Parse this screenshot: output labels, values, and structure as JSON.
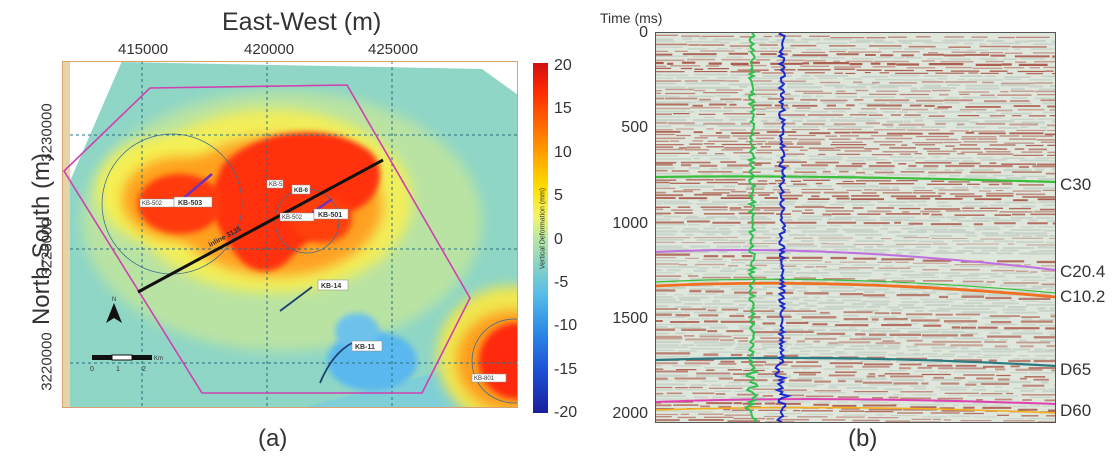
{
  "panel_a": {
    "x_axis_title": "East-West (m)",
    "y_axis_title": "North-South (m)",
    "x_ticks": [
      "415000",
      "420000",
      "425000"
    ],
    "y_ticks": [
      "3230000",
      "3225000",
      "3220000"
    ],
    "colorbar": {
      "ticks": [
        "20",
        "15",
        "10",
        "5",
        "0",
        "-5",
        "-10",
        "-15",
        "-20"
      ],
      "label": "Vertical Deformation (mm)"
    },
    "well_labels": [
      "KB-503",
      "KB-502",
      "KB-5",
      "KB-6",
      "KB-501",
      "KB-14",
      "KB-11",
      "KB-801",
      "KB-502"
    ],
    "line_label": "inline 3135",
    "scale_label": "Km",
    "scale_ticks": [
      "0",
      "1",
      "2"
    ],
    "north": "N",
    "caption": "(a)"
  },
  "panel_b": {
    "y_axis_title": "Time (ms)",
    "y_ticks": [
      "0",
      "500",
      "1000",
      "1500",
      "2000"
    ],
    "horizons": [
      "C30",
      "C20.4",
      "C10.2",
      "D65",
      "D60"
    ],
    "caption": "(b)"
  },
  "colors": {
    "pink_boundary": "#d040b0",
    "horizon_c30": "#3bbf3b",
    "horizon_c204": "#c070e0",
    "horizon_c102": "#f07020",
    "horizon_d65": "#2a7a80",
    "horizon_d60": "#e040b0",
    "log_green": "#2ec050",
    "log_blue": "#1a2ad0"
  }
}
